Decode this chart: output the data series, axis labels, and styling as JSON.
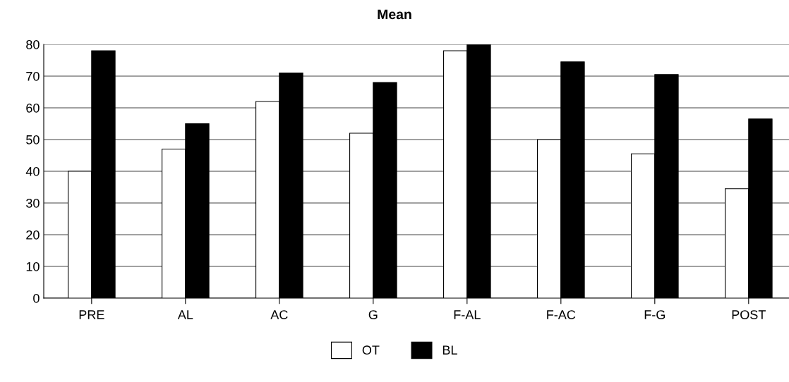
{
  "chart_data": {
    "type": "bar",
    "title": "Mean",
    "categories": [
      "PRE",
      "AL",
      "AC",
      "G",
      "F-AL",
      "F-AC",
      "F-G",
      "POST"
    ],
    "series": [
      {
        "name": "OT",
        "color": "#ffffff",
        "values": [
          40,
          47,
          62,
          52,
          78,
          50,
          45.5,
          34.5
        ]
      },
      {
        "name": "BL",
        "color": "#000000",
        "values": [
          78,
          55,
          71,
          68,
          80,
          74.5,
          70.5,
          56.5
        ]
      }
    ],
    "ylim": [
      0,
      80
    ],
    "yticks": [
      0,
      10,
      20,
      30,
      40,
      50,
      60,
      70,
      80
    ],
    "grid": "y",
    "legend": "bottom"
  }
}
